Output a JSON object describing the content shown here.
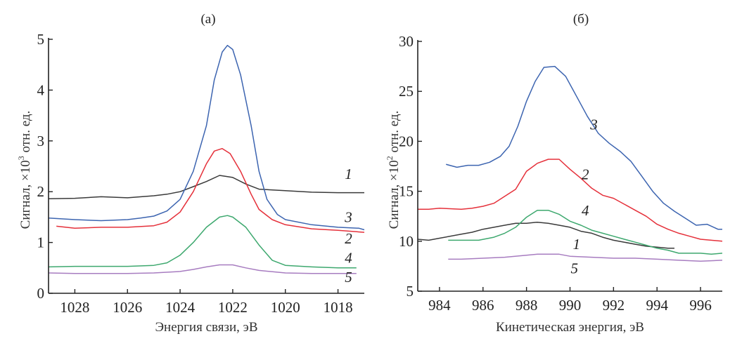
{
  "chart_data": [
    {
      "type": "line",
      "panel": "(a)",
      "title": "(a)",
      "xlabel": "Энергия связи, эВ",
      "ylabel": "Сигнал, ×10³ отн. ед.",
      "ylabel_parts": {
        "prefix": "Сигнал, ×10",
        "exp": "3",
        "suffix": " отн. ед."
      },
      "xlim": [
        1029,
        1017
      ],
      "x_reversed": true,
      "ylim": [
        0,
        5
      ],
      "xticks": [
        1028,
        1026,
        1024,
        1022,
        1020,
        1018
      ],
      "yticks": [
        0,
        1,
        2,
        3,
        4,
        5
      ],
      "grid": false,
      "series": [
        {
          "name": "1",
          "color": "#3a3a3a",
          "label_at": [
            1017.6,
            2.25
          ],
          "x": [
            1029,
            1028,
            1027,
            1026,
            1025,
            1024.5,
            1024,
            1023.5,
            1023,
            1022.5,
            1022,
            1021.5,
            1021,
            1020,
            1019,
            1018,
            1017
          ],
          "y": [
            1.86,
            1.87,
            1.9,
            1.88,
            1.92,
            1.95,
            2.0,
            2.1,
            2.2,
            2.32,
            2.28,
            2.15,
            2.05,
            2.02,
            1.99,
            1.98,
            1.98
          ]
        },
        {
          "name": "2",
          "color": "#e5303a",
          "label_at": [
            1017.6,
            0.98
          ],
          "x": [
            1028.7,
            1028,
            1027,
            1026,
            1025,
            1024.5,
            1024,
            1023.5,
            1023,
            1022.7,
            1022.4,
            1022.1,
            1021.7,
            1021.3,
            1021,
            1020.5,
            1020,
            1019,
            1018,
            1017
          ],
          "y": [
            1.32,
            1.28,
            1.3,
            1.3,
            1.33,
            1.4,
            1.6,
            2.0,
            2.55,
            2.8,
            2.85,
            2.75,
            2.4,
            1.95,
            1.65,
            1.45,
            1.35,
            1.27,
            1.24,
            1.2
          ]
        },
        {
          "name": "3",
          "color": "#3c64b0",
          "label_at": [
            1017.6,
            1.4
          ],
          "x": [
            1029,
            1028,
            1027,
            1026,
            1025.5,
            1025,
            1024.5,
            1024,
            1023.5,
            1023,
            1022.7,
            1022.4,
            1022.2,
            1022,
            1021.7,
            1021.3,
            1021,
            1020.7,
            1020.3,
            1020,
            1019,
            1018,
            1017.2,
            1017
          ],
          "y": [
            1.48,
            1.45,
            1.43,
            1.45,
            1.48,
            1.52,
            1.62,
            1.85,
            2.4,
            3.3,
            4.2,
            4.75,
            4.88,
            4.8,
            4.3,
            3.3,
            2.4,
            1.85,
            1.55,
            1.45,
            1.35,
            1.3,
            1.28,
            1.25
          ]
        },
        {
          "name": "4",
          "color": "#3da86e",
          "label_at": [
            1017.6,
            0.6
          ],
          "x": [
            1029,
            1028,
            1027,
            1026,
            1025,
            1024.5,
            1024,
            1023.5,
            1023,
            1022.5,
            1022.2,
            1022,
            1021.5,
            1021,
            1020.5,
            1020,
            1019,
            1018,
            1017.3
          ],
          "y": [
            0.52,
            0.53,
            0.53,
            0.53,
            0.55,
            0.6,
            0.75,
            1.0,
            1.3,
            1.5,
            1.53,
            1.5,
            1.3,
            0.95,
            0.65,
            0.55,
            0.52,
            0.5,
            0.5
          ]
        },
        {
          "name": "5",
          "color": "#a77cc0",
          "label_at": [
            1017.6,
            0.22
          ],
          "x": [
            1029,
            1028,
            1027,
            1026,
            1025,
            1024,
            1023.5,
            1023,
            1022.5,
            1022,
            1021.5,
            1021,
            1020,
            1019,
            1018,
            1017.3
          ],
          "y": [
            0.4,
            0.39,
            0.39,
            0.39,
            0.4,
            0.43,
            0.47,
            0.52,
            0.56,
            0.56,
            0.5,
            0.45,
            0.4,
            0.39,
            0.39,
            0.39
          ]
        }
      ]
    },
    {
      "type": "line",
      "panel": "(б)",
      "title": "(б)",
      "xlabel": "Кинетическая энергия, эВ",
      "ylabel": "Сигнал, ×10² отн. ед.",
      "ylabel_parts": {
        "prefix": "Сигнал, ×10",
        "exp": "2",
        "suffix": " отн. ед."
      },
      "xlim": [
        983,
        997
      ],
      "x_reversed": false,
      "ylim": [
        5,
        30
      ],
      "xticks": [
        984,
        986,
        988,
        990,
        992,
        994,
        996
      ],
      "yticks": [
        5,
        10,
        15,
        20,
        25,
        30
      ],
      "grid": false,
      "series": [
        {
          "name": "1",
          "color": "#3a3a3a",
          "label_at": [
            990.3,
            9.2
          ],
          "x": [
            983,
            983.5,
            984,
            985,
            985.5,
            986,
            986.5,
            987,
            987.5,
            988,
            988.5,
            989,
            989.5,
            990,
            990.5,
            991,
            991.5,
            992,
            992.5,
            993,
            993.5,
            994,
            994.5,
            994.8
          ],
          "y": [
            10.2,
            10.1,
            10.3,
            10.7,
            10.9,
            11.2,
            11.4,
            11.6,
            11.8,
            11.8,
            11.9,
            11.8,
            11.6,
            11.4,
            11.0,
            10.8,
            10.4,
            10.1,
            9.9,
            9.7,
            9.5,
            9.4,
            9.3,
            9.3
          ]
        },
        {
          "name": "2",
          "color": "#e5303a",
          "label_at": [
            990.7,
            16.2
          ],
          "x": [
            983,
            983.5,
            984,
            985,
            985.5,
            986,
            986.5,
            987,
            987.5,
            988,
            988.5,
            989,
            989.5,
            990,
            990.5,
            991,
            991.5,
            992,
            992.5,
            993,
            993.5,
            994,
            994.5,
            995,
            995.5,
            996,
            996.5,
            997
          ],
          "y": [
            13.2,
            13.2,
            13.3,
            13.2,
            13.3,
            13.5,
            13.8,
            14.5,
            15.2,
            17.0,
            17.8,
            18.2,
            18.2,
            17.2,
            16.3,
            15.3,
            14.6,
            14.3,
            13.7,
            13.1,
            12.5,
            11.7,
            11.2,
            10.8,
            10.5,
            10.2,
            10.1,
            10.0
          ]
        },
        {
          "name": "3",
          "color": "#3c64b0",
          "label_at": [
            991.1,
            21.2
          ],
          "x": [
            984.3,
            984.8,
            985.3,
            985.8,
            986.3,
            986.8,
            987.2,
            987.6,
            988.0,
            988.4,
            988.8,
            989.3,
            989.8,
            990.3,
            990.8,
            991.3,
            991.8,
            992.3,
            992.8,
            993.3,
            993.8,
            994.3,
            994.8,
            995.3,
            995.8,
            996.3,
            996.8,
            997
          ],
          "y": [
            17.7,
            17.4,
            17.6,
            17.6,
            17.9,
            18.5,
            19.5,
            21.5,
            24.0,
            26.0,
            27.4,
            27.5,
            26.5,
            24.5,
            22.5,
            20.8,
            19.8,
            19.0,
            18.0,
            16.5,
            15.0,
            13.8,
            13.0,
            12.3,
            11.6,
            11.7,
            11.2,
            11.2
          ]
        },
        {
          "name": "4",
          "color": "#3da86e",
          "label_at": [
            990.7,
            12.6
          ],
          "x": [
            984.4,
            985,
            985.8,
            986.5,
            987,
            987.5,
            988,
            988.5,
            989,
            989.5,
            990,
            990.5,
            991,
            991.5,
            992,
            992.5,
            993,
            993.5,
            994,
            994.5,
            995,
            995.5,
            996,
            996.5,
            997
          ],
          "y": [
            10.1,
            10.1,
            10.1,
            10.4,
            10.8,
            11.4,
            12.4,
            13.1,
            13.1,
            12.7,
            12.0,
            11.6,
            11.1,
            10.8,
            10.5,
            10.2,
            9.9,
            9.6,
            9.3,
            9.1,
            8.8,
            8.8,
            8.8,
            8.7,
            8.8
          ]
        },
        {
          "name": "5",
          "color": "#a77cc0",
          "label_at": [
            990.2,
            6.8
          ],
          "x": [
            984.4,
            985,
            986,
            987,
            988,
            988.5,
            989,
            989.5,
            990,
            991,
            992,
            993,
            994,
            995,
            996,
            997
          ],
          "y": [
            8.2,
            8.2,
            8.3,
            8.4,
            8.6,
            8.7,
            8.7,
            8.7,
            8.5,
            8.4,
            8.3,
            8.3,
            8.2,
            8.1,
            8.0,
            8.1
          ]
        }
      ]
    }
  ]
}
